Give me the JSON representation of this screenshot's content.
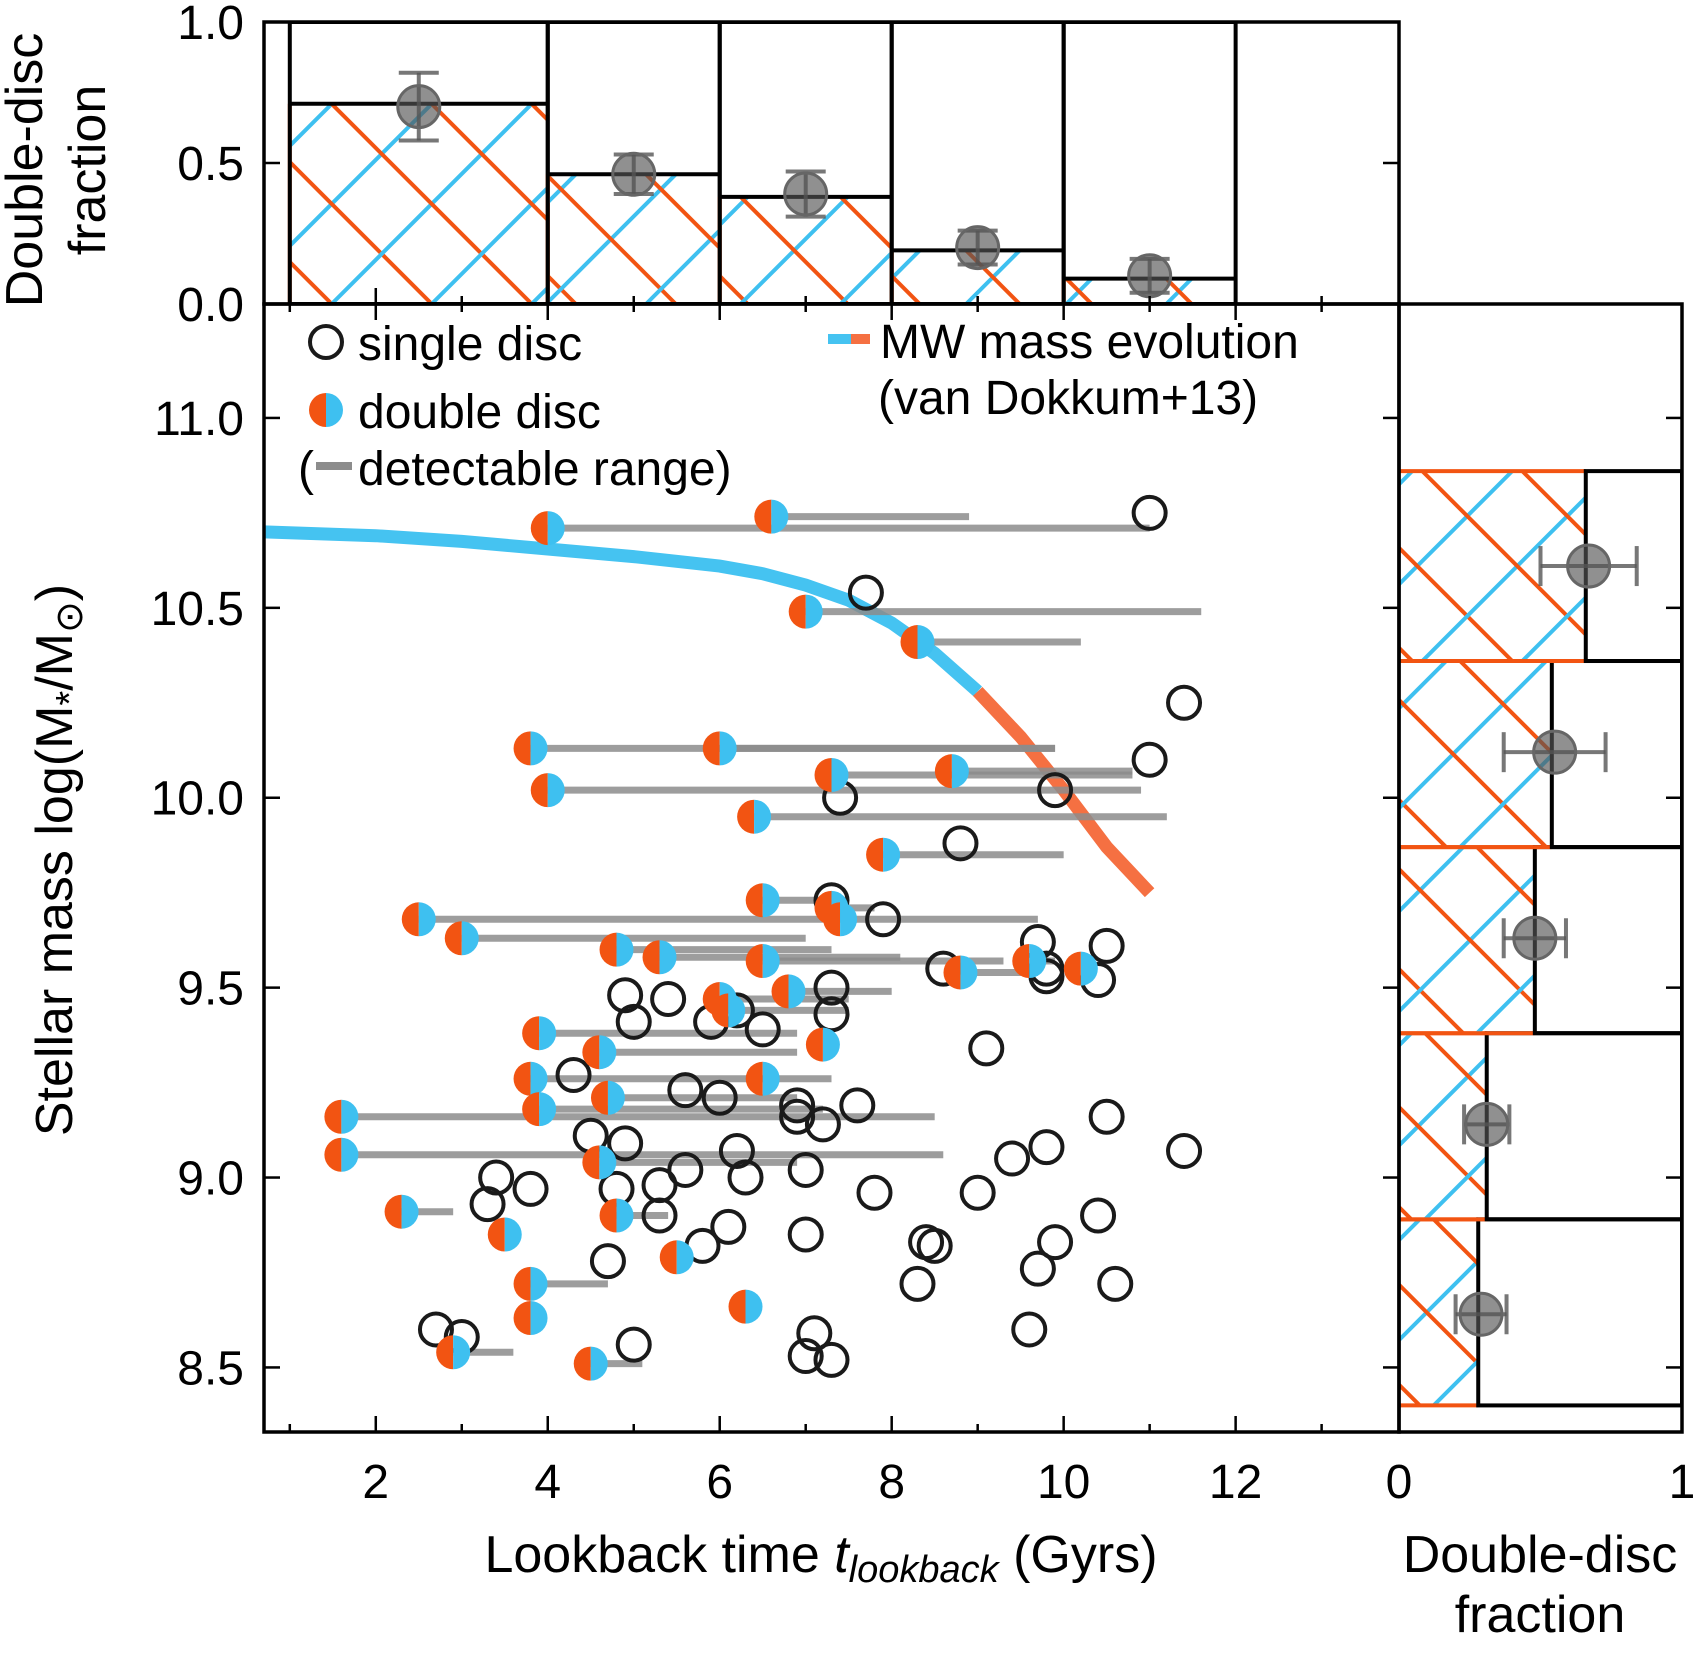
{
  "chart_data": [
    {
      "id": "main",
      "type": "scatter",
      "xlabel": "Lookback time",
      "xlabel_sym": "t",
      "xlabel_sub": "lookback",
      "xlabel_unit": "(Gyrs)",
      "ylabel": "Stellar mass log(M",
      "ylabel_sub1": "*",
      "ylabel_mid": "/M",
      "ylabel_sub2": "⊙",
      "ylabel_end": ")",
      "xlim": [
        0.7,
        13.9
      ],
      "ylim": [
        8.33,
        11.3
      ],
      "xticks": [
        2,
        4,
        6,
        8,
        10,
        12
      ],
      "xtick_labels": [
        "2",
        "4",
        "6",
        "8",
        "10",
        "12"
      ],
      "yticks": [
        8.5,
        9.0,
        9.5,
        10.0,
        10.5,
        11.0
      ],
      "ytick_labels": [
        "8.5",
        "9.0",
        "9.5",
        "10.0",
        "10.5",
        "11.0"
      ],
      "legend": {
        "single": "single disc",
        "double": "double disc",
        "range": "detectable range)",
        "range_open": "(",
        "mw": "MW mass evolution",
        "mw2": "(van Dokkum+13)"
      },
      "colors": {
        "blue": "#3ec0f0",
        "orange": "#f25412",
        "mw_blue": "#45c3f1",
        "mw_orange": "#f57042",
        "range": "#8c8c8c",
        "edge": "#1a1a1a"
      },
      "single_disc": [
        [
          11.0,
          10.75
        ],
        [
          7.7,
          10.54
        ],
        [
          11.4,
          10.25
        ],
        [
          11.0,
          10.1
        ],
        [
          9.9,
          10.02
        ],
        [
          7.4,
          10.0
        ],
        [
          8.8,
          9.88
        ],
        [
          7.3,
          9.73
        ],
        [
          7.9,
          9.68
        ],
        [
          9.7,
          9.62
        ],
        [
          10.5,
          9.61
        ],
        [
          9.8,
          9.55
        ],
        [
          10.4,
          9.52
        ],
        [
          9.8,
          9.53
        ],
        [
          8.6,
          9.55
        ],
        [
          7.3,
          9.5
        ],
        [
          4.9,
          9.48
        ],
        [
          5.4,
          9.47
        ],
        [
          5.0,
          9.41
        ],
        [
          5.9,
          9.41
        ],
        [
          6.2,
          9.44
        ],
        [
          6.5,
          9.39
        ],
        [
          7.3,
          9.43
        ],
        [
          9.1,
          9.34
        ],
        [
          4.3,
          9.27
        ],
        [
          5.6,
          9.23
        ],
        [
          6.0,
          9.21
        ],
        [
          6.9,
          9.19
        ],
        [
          7.6,
          9.19
        ],
        [
          7.2,
          9.14
        ],
        [
          6.9,
          9.16
        ],
        [
          10.5,
          9.16
        ],
        [
          4.5,
          9.11
        ],
        [
          4.9,
          9.09
        ],
        [
          6.2,
          9.07
        ],
        [
          9.4,
          9.05
        ],
        [
          9.8,
          9.08
        ],
        [
          11.4,
          9.07
        ],
        [
          3.4,
          9.0
        ],
        [
          5.6,
          9.02
        ],
        [
          7.0,
          9.02
        ],
        [
          6.3,
          9.0
        ],
        [
          5.3,
          8.98
        ],
        [
          4.8,
          8.97
        ],
        [
          3.8,
          8.97
        ],
        [
          3.3,
          8.93
        ],
        [
          7.8,
          8.96
        ],
        [
          9.0,
          8.96
        ],
        [
          5.3,
          8.9
        ],
        [
          6.1,
          8.87
        ],
        [
          10.4,
          8.9
        ],
        [
          7.0,
          8.85
        ],
        [
          9.9,
          8.83
        ],
        [
          8.4,
          8.83
        ],
        [
          8.5,
          8.82
        ],
        [
          5.8,
          8.82
        ],
        [
          4.7,
          8.78
        ],
        [
          9.7,
          8.76
        ],
        [
          10.6,
          8.72
        ],
        [
          8.3,
          8.72
        ],
        [
          2.7,
          8.6
        ],
        [
          3.0,
          8.58
        ],
        [
          7.1,
          8.59
        ],
        [
          9.6,
          8.6
        ],
        [
          5.0,
          8.56
        ],
        [
          7.0,
          8.53
        ],
        [
          7.3,
          8.52
        ]
      ],
      "double_disc": [
        [
          4.0,
          10.71,
          11.0
        ],
        [
          6.6,
          10.74,
          8.9
        ],
        [
          7.0,
          10.49,
          11.6
        ],
        [
          8.3,
          10.41,
          10.2
        ],
        [
          3.8,
          10.13,
          9.9
        ],
        [
          6.0,
          10.13,
          9.9
        ],
        [
          4.0,
          10.02,
          10.9
        ],
        [
          7.3,
          10.06,
          10.8
        ],
        [
          8.7,
          10.07,
          10.8
        ],
        [
          6.4,
          9.95,
          11.2
        ],
        [
          7.9,
          9.85,
          10.0
        ],
        [
          6.5,
          9.73,
          7.5
        ],
        [
          2.5,
          9.68,
          7.2
        ],
        [
          7.3,
          9.71,
          7.8
        ],
        [
          7.4,
          9.68,
          9.7
        ],
        [
          3.0,
          9.63,
          7.0
        ],
        [
          4.8,
          9.6,
          7.3
        ],
        [
          5.3,
          9.58,
          8.1
        ],
        [
          6.5,
          9.57,
          9.3
        ],
        [
          9.6,
          9.57,
          9.9
        ],
        [
          10.2,
          9.55,
          10.1
        ],
        [
          8.8,
          9.54,
          9.7
        ],
        [
          6.8,
          9.49,
          8.0
        ],
        [
          6.0,
          9.47,
          7.5
        ],
        [
          6.1,
          9.44,
          7.5
        ],
        [
          3.9,
          9.38,
          6.9
        ],
        [
          4.6,
          9.33,
          6.9
        ],
        [
          7.2,
          9.35,
          7.2
        ],
        [
          3.8,
          9.26,
          7.3
        ],
        [
          4.7,
          9.21,
          6.9
        ],
        [
          6.5,
          9.26,
          6.6
        ],
        [
          3.9,
          9.18,
          7.2
        ],
        [
          1.6,
          9.16,
          8.5
        ],
        [
          1.6,
          9.06,
          8.6
        ],
        [
          4.6,
          9.04,
          6.9
        ],
        [
          2.3,
          8.91,
          2.9
        ],
        [
          4.8,
          8.9,
          5.4
        ],
        [
          3.5,
          8.85,
          3.5
        ],
        [
          5.5,
          8.79,
          5.5
        ],
        [
          3.8,
          8.72,
          4.7
        ],
        [
          6.3,
          8.66,
          6.3
        ],
        [
          3.8,
          8.63,
          3.8
        ],
        [
          2.9,
          8.54,
          3.6
        ],
        [
          4.5,
          8.51,
          5.1
        ]
      ],
      "mw_track_x": [
        0.7,
        2,
        3,
        4,
        5,
        6,
        6.5,
        7,
        7.5,
        8,
        8.5,
        9,
        9.5,
        10,
        10.5,
        11
      ],
      "mw_track_y": [
        10.7,
        10.69,
        10.675,
        10.655,
        10.635,
        10.61,
        10.59,
        10.56,
        10.52,
        10.46,
        10.38,
        10.28,
        10.16,
        10.02,
        9.87,
        9.75
      ]
    },
    {
      "id": "top",
      "type": "bar",
      "ylabel": "Double-disc",
      "ylabel2": "fraction",
      "xlim": [
        0.7,
        13.9
      ],
      "ylim": [
        0.0,
        1.0
      ],
      "yticks": [
        0.0,
        0.5,
        1.0
      ],
      "ytick_labels": [
        "0.0",
        "0.5",
        "1.0"
      ],
      "bin_edges": [
        1.0,
        4.0,
        6.0,
        8.0,
        10.0,
        12.0
      ],
      "fractions": [
        0.71,
        0.46,
        0.38,
        0.19,
        0.09
      ],
      "points": [
        [
          2.5,
          0.7,
          0.12
        ],
        [
          5.0,
          0.46,
          0.07
        ],
        [
          7.0,
          0.39,
          0.08
        ],
        [
          9.0,
          0.2,
          0.06
        ],
        [
          11.0,
          0.1,
          0.06
        ]
      ]
    },
    {
      "id": "right",
      "type": "bar",
      "xlabel": "Double-disc",
      "xlabel2": "fraction",
      "xlim": [
        0,
        1
      ],
      "xticks": [
        0,
        1
      ],
      "xtick_labels": [
        "0",
        "1"
      ],
      "bin_edges": [
        8.4,
        8.89,
        9.38,
        9.87,
        10.36,
        10.86
      ],
      "fractions": [
        0.28,
        0.31,
        0.48,
        0.54,
        0.66
      ],
      "points": [
        [
          8.64,
          0.29,
          0.09
        ],
        [
          9.14,
          0.31,
          0.08
        ],
        [
          9.63,
          0.48,
          0.11
        ],
        [
          10.12,
          0.55,
          0.18
        ],
        [
          10.61,
          0.67,
          0.17
        ]
      ]
    }
  ]
}
